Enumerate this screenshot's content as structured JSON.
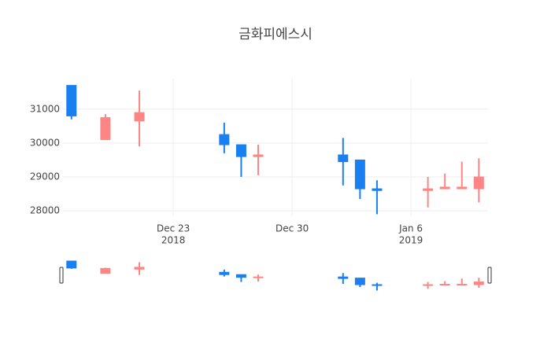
{
  "chart_data": {
    "type": "candlestick",
    "title": "금화피에스시",
    "x": [
      "2018-12-17",
      "2018-12-19",
      "2018-12-21",
      "2018-12-26",
      "2018-12-27",
      "2018-12-28",
      "2019-01-02",
      "2019-01-03",
      "2019-01-04",
      "2019-01-07",
      "2019-01-08",
      "2019-01-09",
      "2019-01-10"
    ],
    "open": [
      31700,
      30100,
      30650,
      30250,
      29950,
      29600,
      29650,
      29500,
      28650,
      28600,
      28650,
      28650,
      28650
    ],
    "high": [
      31700,
      30850,
      31550,
      30600,
      29950,
      29950,
      30150,
      29500,
      28900,
      29000,
      29100,
      29450,
      29550
    ],
    "low": [
      30700,
      30100,
      29900,
      29700,
      29000,
      29050,
      28750,
      28350,
      27900,
      28100,
      28650,
      28650,
      28250
    ],
    "close": [
      30800,
      30750,
      30900,
      29950,
      29600,
      29650,
      29450,
      28650,
      28600,
      28650,
      28700,
      28700,
      29000
    ],
    "increasing_color": "#ff8585",
    "decreasing_color": "#1a7ff0",
    "xlim": [
      "2018-12-16 12:00",
      "2019-01-10 13:00"
    ],
    "xticks": [
      {
        "value": "2018-12-23",
        "label": [
          "Dec 23",
          "2018"
        ]
      },
      {
        "value": "2018-12-30",
        "label": [
          "Dec 30"
        ]
      },
      {
        "value": "2019-01-06",
        "label": [
          "Jan 6",
          "2019"
        ]
      }
    ],
    "ylim": [
      27840,
      31900
    ],
    "yticks": [
      28000,
      29000,
      30000,
      31000
    ],
    "grid": true,
    "rangeslider": true
  }
}
